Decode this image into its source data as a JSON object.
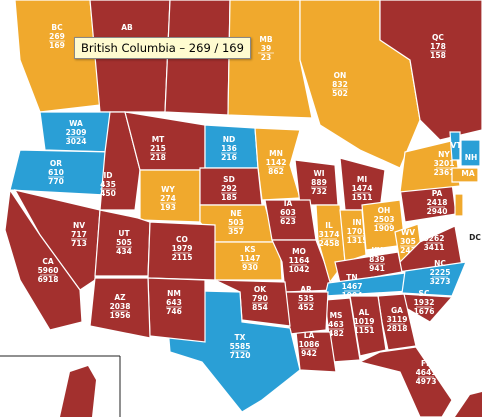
{
  "regions": [
    {
      "label": "BC",
      "values": [
        269,
        169
      ],
      "color": "#f0a92d"
    },
    {
      "label": "AB",
      "color": "#a3302e"
    },
    {
      "color": "#a3302e"
    },
    {
      "label": "MB",
      "values": [
        39,
        23
      ],
      "color": "#f0a92d"
    },
    {
      "label": "ON",
      "values": [
        832,
        502
      ],
      "color": "#f0a92d"
    },
    {
      "label": "QC",
      "values": [
        178,
        158
      ],
      "color": "#a3302e"
    },
    {
      "label": "WA",
      "values": [
        2309,
        3024
      ],
      "color": "#2a9fd6"
    },
    {
      "label": "OR",
      "values": [
        610,
        770
      ],
      "color": "#2a9fd6"
    },
    {
      "label": "ID",
      "values": [
        435,
        450
      ],
      "color": "#a3302e"
    },
    {
      "label": "MT",
      "values": [
        215,
        218
      ],
      "color": "#a3302e"
    },
    {
      "label": "ND",
      "values": [
        136,
        216
      ],
      "color": "#2a9fd6"
    },
    {
      "label": "MN",
      "values": [
        1142,
        862
      ],
      "color": "#f0a92d"
    },
    {
      "label": "WY",
      "values": [
        274,
        193
      ],
      "color": "#f0a92d"
    },
    {
      "label": "SD",
      "values": [
        292,
        185
      ],
      "color": "#a3302e"
    },
    {
      "label": "NE",
      "values": [
        503,
        357
      ],
      "color": "#f0a92d"
    },
    {
      "label": "WI",
      "values": [
        889,
        732
      ],
      "color": "#a3302e"
    },
    {
      "label": "MI",
      "values": [
        1474,
        1511
      ],
      "color": "#a3302e"
    },
    {
      "label": "NV",
      "values": [
        717,
        713
      ],
      "color": "#a3302e"
    },
    {
      "label": "CA",
      "values": [
        5960,
        6918
      ],
      "color": "#a3302e"
    },
    {
      "label": "UT",
      "values": [
        505,
        434
      ],
      "color": "#a3302e"
    },
    {
      "label": "CO",
      "values": [
        1979,
        2115
      ],
      "color": "#a3302e"
    },
    {
      "label": "KS",
      "values": [
        1147,
        930
      ],
      "color": "#f0a92d"
    },
    {
      "label": "IA",
      "values": [
        603,
        623
      ],
      "color": "#a3302e"
    },
    {
      "label": "MO",
      "values": [
        1164,
        1042
      ],
      "color": "#a3302e"
    },
    {
      "label": "IL",
      "values": [
        3174,
        2458
      ],
      "color": "#f0a92d"
    },
    {
      "label": "IN",
      "values": [
        1701,
        1315
      ],
      "color": "#f0a92d"
    },
    {
      "label": "OH",
      "values": [
        2503,
        1909
      ],
      "color": "#f0a92d"
    },
    {
      "label": "PA",
      "values": [
        2418,
        2940
      ],
      "color": "#a3302e"
    },
    {
      "label": "NY",
      "values": [
        3201,
        2367
      ],
      "color": "#f0a92d"
    },
    {
      "label": "WV",
      "values": [
        305,
        243
      ],
      "color": "#f0a92d"
    },
    {
      "label": "VA",
      "values": [
        3262,
        3411
      ],
      "color": "#a3302e"
    },
    {
      "label": "KY",
      "values": [
        839,
        941
      ],
      "color": "#a3302e"
    },
    {
      "label": "TN",
      "values": [
        1467,
        1904
      ],
      "color": "#2a9fd6"
    },
    {
      "label": "NC",
      "values": [
        2225,
        3273
      ],
      "color": "#2a9fd6"
    },
    {
      "label": "SC",
      "values": [
        1932,
        1676
      ],
      "color": "#a3302e"
    },
    {
      "label": "GA",
      "values": [
        3119,
        2818
      ],
      "color": "#a3302e"
    },
    {
      "label": "AL",
      "values": [
        1019,
        1151
      ],
      "color": "#a3302e"
    },
    {
      "label": "MS",
      "values": [
        463,
        482
      ],
      "color": "#a3302e"
    },
    {
      "label": "LA",
      "values": [
        1086,
        942
      ],
      "color": "#a3302e"
    },
    {
      "label": "AR",
      "values": [
        535,
        452
      ],
      "color": "#a3302e"
    },
    {
      "label": "OK",
      "values": [
        790,
        854
      ],
      "color": "#a3302e"
    },
    {
      "label": "TX",
      "values": [
        5585,
        7120
      ],
      "color": "#2a9fd6"
    },
    {
      "label": "NM",
      "values": [
        643,
        746
      ],
      "color": "#a3302e"
    },
    {
      "label": "AZ",
      "values": [
        2038,
        1956
      ],
      "color": "#a3302e"
    },
    {
      "label": "FL",
      "values": [
        4641,
        4973
      ],
      "color": "#a3302e"
    },
    {
      "label": "VT",
      "color": "#2a9fd6"
    },
    {
      "label": "NH",
      "color": "#2a9fd6"
    },
    {
      "label": "MA",
      "color": "#f0a92d"
    },
    {
      "color": "#f0a92d"
    },
    {
      "label": "DC",
      "color": "#ffffff"
    }
  ],
  "tooltip": "British Columbia – 269 / 169"
}
